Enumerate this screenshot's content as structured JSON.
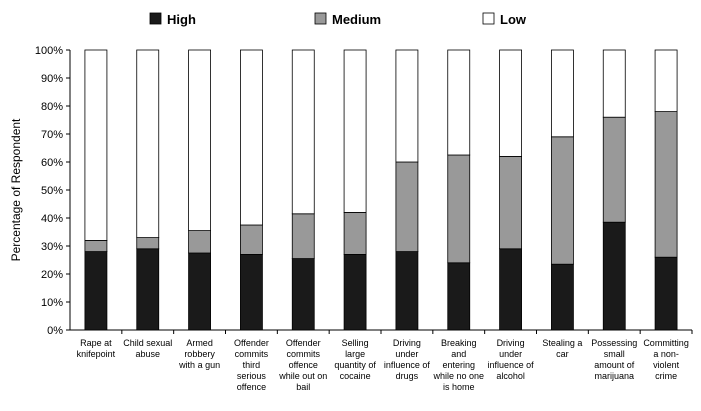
{
  "chart_data": {
    "type": "bar",
    "stacked": true,
    "percent": true,
    "title": "",
    "xlabel": "",
    "ylabel": "Percentage of Respondent",
    "ylim": [
      0,
      100
    ],
    "yticks": [
      "0%",
      "10%",
      "20%",
      "30%",
      "40%",
      "50%",
      "60%",
      "70%",
      "80%",
      "90%",
      "100%"
    ],
    "legend_position": "top",
    "grid": false,
    "categories": [
      [
        "Rape at",
        "knifepoint"
      ],
      [
        "Child sexual",
        "abuse"
      ],
      [
        "Armed",
        "robbery",
        "with a gun"
      ],
      [
        "Offender",
        "commits",
        "third",
        "serious",
        "offence"
      ],
      [
        "Offender",
        "commits",
        "offence",
        "while out on",
        "bail"
      ],
      [
        "Selling",
        "large",
        "quantity of",
        "cocaine"
      ],
      [
        "Driving",
        "under",
        "influence of",
        "drugs"
      ],
      [
        "Breaking",
        "and",
        "entering",
        "while no one",
        "is home"
      ],
      [
        "Driving",
        "under",
        "influence of",
        "alcohol"
      ],
      [
        "Stealing a",
        "car"
      ],
      [
        "Possessing",
        "small",
        "amount of",
        "marijuana"
      ],
      [
        "Committing",
        "a non-",
        "violent",
        "crime"
      ]
    ],
    "series": [
      {
        "name": "High",
        "color": "#1a1a1a",
        "values": [
          28,
          29,
          27.5,
          27,
          25.5,
          27,
          28,
          24,
          29,
          23.5,
          38.5,
          26
        ]
      },
      {
        "name": "Medium",
        "color": "#999999",
        "values": [
          4,
          4,
          8,
          10.5,
          16,
          15,
          32,
          38.5,
          33,
          45.5,
          37.5,
          52
        ]
      },
      {
        "name": "Low",
        "color": "#ffffff",
        "values": [
          68,
          67,
          64.5,
          62.5,
          58.5,
          58,
          40,
          37.5,
          38,
          31,
          24,
          22
        ]
      }
    ]
  }
}
